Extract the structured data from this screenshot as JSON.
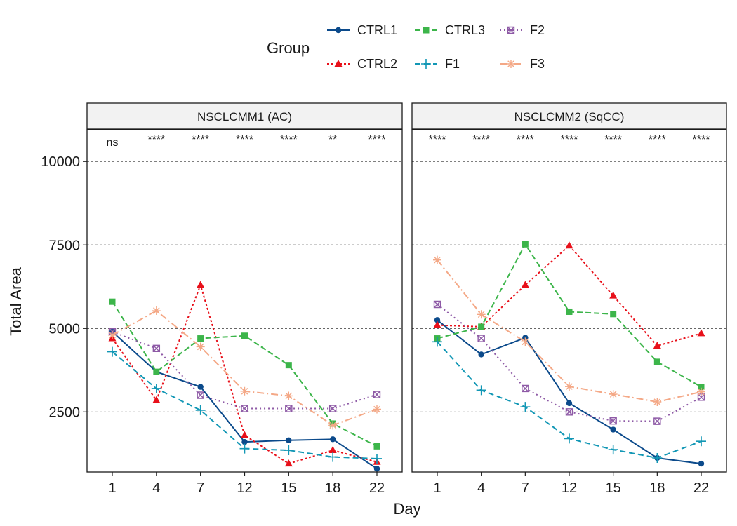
{
  "chart_data": {
    "type": "line",
    "xlabel": "Day",
    "ylabel": "Total Area",
    "x_categories": [
      "1",
      "4",
      "7",
      "12",
      "15",
      "18",
      "22"
    ],
    "y_ticks": [
      2500,
      5000,
      7500,
      10000
    ],
    "ylim": [
      700,
      10950
    ],
    "grid": "horizontal dashed at y ticks",
    "legend": {
      "title": "Group",
      "placement": "top",
      "entries": [
        "CTRL1",
        "CTRL3",
        "F2",
        "CTRL2",
        "F1",
        "F3"
      ]
    },
    "series_styles": {
      "CTRL1": {
        "color": "#0b4a8b",
        "dash": "",
        "marker": "circle"
      },
      "CTRL2": {
        "color": "#e8101a",
        "dash": "3,3",
        "marker": "triangle"
      },
      "CTRL3": {
        "color": "#3cb54a",
        "dash": "8,4",
        "marker": "square"
      },
      "F1": {
        "color": "#1297b5",
        "dash": "8,5",
        "marker": "plus"
      },
      "F2": {
        "color": "#8e5aa6",
        "dash": "2,4",
        "marker": "boxcross"
      },
      "F3": {
        "color": "#f4a886",
        "dash": "10,4,2,4",
        "marker": "asterisk"
      }
    },
    "panels": [
      {
        "title": "NSCLCMM1 (AC)",
        "significance": [
          "ns",
          "****",
          "****",
          "****",
          "****",
          "**",
          "****"
        ],
        "series": [
          {
            "name": "CTRL1",
            "values": [
              4900,
              3700,
              3250,
              1600,
              1650,
              1680,
              800
            ]
          },
          {
            "name": "CTRL2",
            "values": [
              4700,
              2850,
              6300,
              1800,
              950,
              1350,
              1000
            ]
          },
          {
            "name": "CTRL3",
            "values": [
              5800,
              3700,
              4700,
              4780,
              3900,
              2150,
              1470
            ]
          },
          {
            "name": "F1",
            "values": [
              4300,
              3200,
              2550,
              1400,
              1350,
              1150,
              1100
            ]
          },
          {
            "name": "F2",
            "values": [
              4900,
              4400,
              3000,
              2600,
              2600,
              2600,
              3020
            ]
          },
          {
            "name": "F3",
            "values": [
              4800,
              5530,
              4450,
              3120,
              2980,
              2100,
              2580
            ]
          }
        ]
      },
      {
        "title": "NSCLCMM2 (SqCC)",
        "significance": [
          "****",
          "****",
          "****",
          "****",
          "****",
          "****",
          "****"
        ],
        "series": [
          {
            "name": "CTRL1",
            "values": [
              5250,
              4220,
              4720,
              2760,
              1970,
              1120,
              950
            ]
          },
          {
            "name": "CTRL2",
            "values": [
              5100,
              5050,
              6300,
              7480,
              5980,
              4480,
              4850
            ]
          },
          {
            "name": "CTRL3",
            "values": [
              4700,
              5050,
              7520,
              5500,
              5430,
              4000,
              3250
            ]
          },
          {
            "name": "F1",
            "values": [
              4600,
              3150,
              2650,
              1700,
              1370,
              1120,
              1620
            ]
          },
          {
            "name": "F2",
            "values": [
              5720,
              4700,
              3200,
              2500,
              2230,
              2220,
              2940
            ]
          },
          {
            "name": "F3",
            "values": [
              7050,
              5420,
              4600,
              3260,
              3030,
              2800,
              3100
            ]
          }
        ]
      }
    ]
  }
}
